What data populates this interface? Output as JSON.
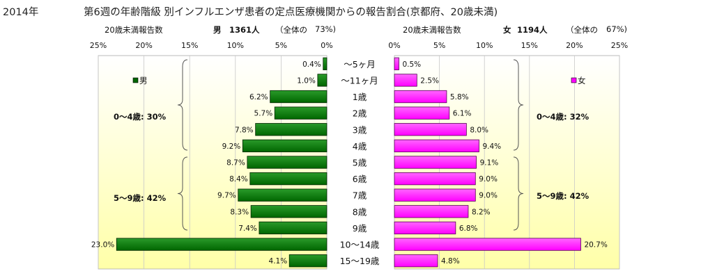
{
  "title": {
    "year": "2014年",
    "main": "第6週の年齢階級 別インフルエンザ患者の定点医療機関からの報告割合(京都府、20歳未満)"
  },
  "male_header": {
    "label": "20歳未満報告数",
    "sex": "男",
    "count": "1361人",
    "share_open": "（全体の",
    "share": "73%)"
  },
  "female_header": {
    "label": "20歳未満報告数",
    "sex": "女",
    "count": "1194人",
    "share_open": "（全体の",
    "share": "67%)"
  },
  "chart_data": [
    {
      "type": "bar",
      "orientation": "horizontal",
      "direction": "reversed",
      "series": [
        {
          "name": "男",
          "values": [
            0.4,
            1.0,
            6.2,
            5.7,
            7.8,
            9.2,
            8.7,
            8.4,
            9.7,
            8.3,
            7.4,
            23.0,
            4.1
          ]
        }
      ],
      "categories": [
        "〜5ヶ月",
        "〜11ヶ月",
        "1歳",
        "2歳",
        "3歳",
        "4歳",
        "5歳",
        "6歳",
        "7歳",
        "8歳",
        "9歳",
        "10〜14歳",
        "15〜19歳"
      ],
      "value_labels": [
        "0.4%",
        "1.0%",
        "6.2%",
        "5.7%",
        "7.8%",
        "9.2%",
        "8.7%",
        "8.4%",
        "9.7%",
        "8.3%",
        "7.4%",
        "23.0%",
        "4.1%"
      ],
      "xlim": [
        0,
        25
      ],
      "x_ticks": [
        "25%",
        "20%",
        "15%",
        "10%",
        "5%",
        "0%"
      ],
      "legend": {
        "label": "男",
        "placement": "top-left"
      },
      "annotations": [
        "0〜4歳: 30%",
        "5〜9歳: 42%"
      ],
      "grid": true,
      "colors": {
        "bar": "#006600",
        "bar_light": "#2a9a2a",
        "plot_bg_top": "#ffffff",
        "plot_bg_bottom": "#ffffa8"
      }
    },
    {
      "type": "bar",
      "orientation": "horizontal",
      "series": [
        {
          "name": "女",
          "values": [
            0.5,
            2.5,
            5.8,
            6.1,
            8.0,
            9.4,
            9.1,
            9.0,
            9.0,
            8.2,
            6.8,
            20.7,
            4.8
          ]
        }
      ],
      "categories": [
        "〜5ヶ月",
        "〜11ヶ月",
        "1歳",
        "2歳",
        "3歳",
        "4歳",
        "5歳",
        "6歳",
        "7歳",
        "8歳",
        "9歳",
        "10〜14歳",
        "15〜19歳"
      ],
      "value_labels": [
        "0.5%",
        "2.5%",
        "5.8%",
        "6.1%",
        "8.0%",
        "9.4%",
        "9.1%",
        "9.0%",
        "9.0%",
        "8.2%",
        "6.8%",
        "20.7%",
        "4.8%"
      ],
      "xlim": [
        0,
        25
      ],
      "x_ticks": [
        "0%",
        "5%",
        "10%",
        "15%",
        "20%",
        "25%"
      ],
      "legend": {
        "label": "女",
        "placement": "top-right"
      },
      "annotations": [
        "0〜4歳: 32%",
        "5〜9歳: 42%"
      ],
      "grid": true,
      "colors": {
        "bar": "#ff00ff",
        "bar_light": "#ff66ff",
        "plot_bg_top": "#ffffff",
        "plot_bg_bottom": "#ffffa8"
      }
    }
  ]
}
